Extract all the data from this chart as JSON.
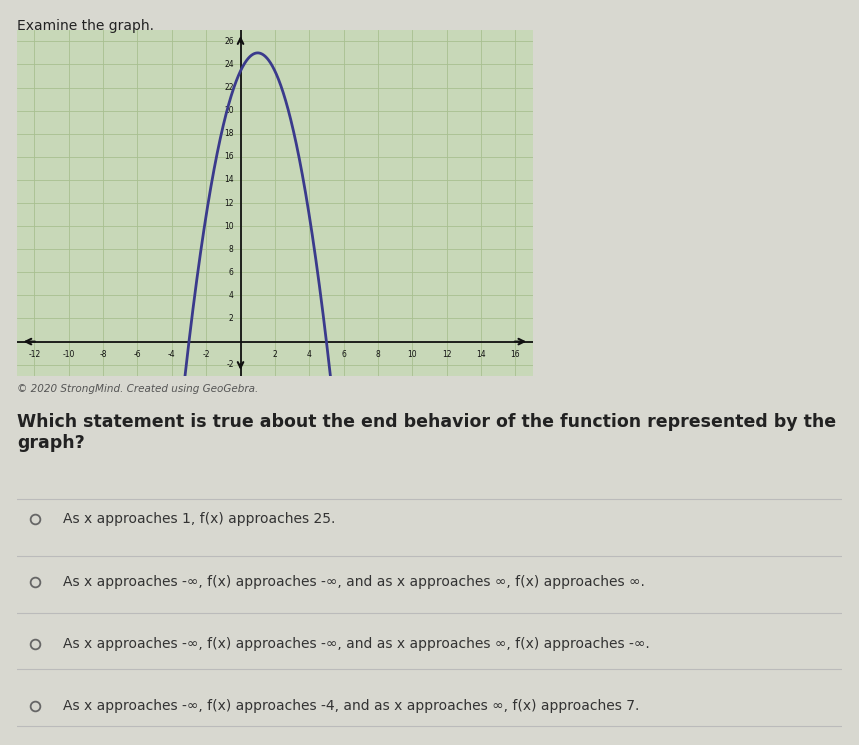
{
  "title": "Examine the graph.",
  "copyright": "© 2020 StrongMind. Created using GeoGebra.",
  "question": "Which statement is true about the end behavior of the function represented by the graph?",
  "options": [
    "As x approaches 1, f(x) approaches 25.",
    "As x approaches -∞, f(x) approaches -∞, and as x approaches ∞, f(x) approaches ∞.",
    "As x approaches -∞, f(x) approaches -∞, and as x approaches ∞, f(x) approaches -∞.",
    "As x approaches -∞, f(x) approaches -4, and as x approaches ∞, f(x) approaches 7."
  ],
  "graph": {
    "xlim": [
      -13,
      17
    ],
    "ylim": [
      -3,
      27
    ],
    "xticks": [
      -12,
      -10,
      -8,
      -6,
      -4,
      -2,
      2,
      4,
      6,
      8,
      10,
      12,
      14,
      16
    ],
    "yticks": [
      -2,
      2,
      4,
      6,
      8,
      10,
      12,
      14,
      16,
      18,
      20,
      22,
      24,
      26
    ],
    "curve_color": "#3a3a8c",
    "bg_color": "#c8d8b8",
    "grid_color": "#a8c090",
    "axis_color": "#111111",
    "curve_peak_x": 1,
    "curve_peak_y": 25,
    "curve_roots": [
      -3,
      5
    ]
  },
  "background_color": "#d8d8d0",
  "text_color": "#222222",
  "divider_color": "#bbbbbb",
  "option_text_color": "#333333"
}
